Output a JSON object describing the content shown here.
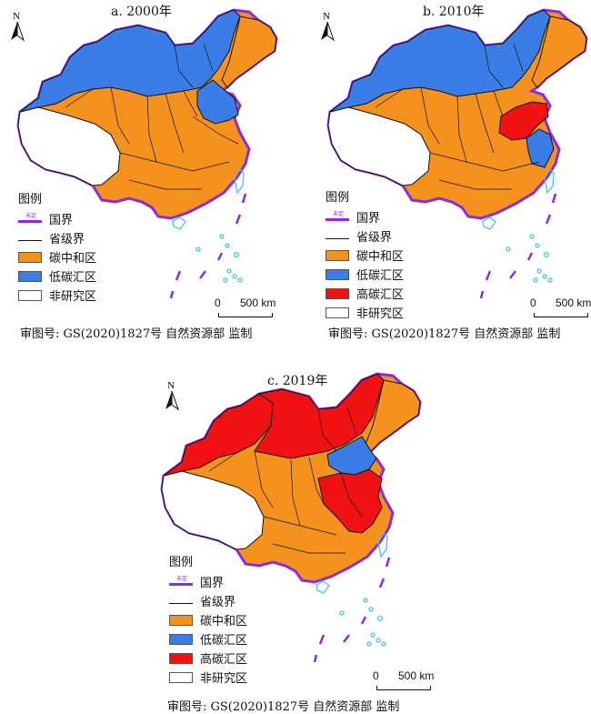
{
  "colors": {
    "carbon_neutral": "#f5921e",
    "low_carbon_sink": "#3a7de6",
    "high_carbon_sink": "#f01212",
    "non_study": "#ffffff",
    "national_border": "#8a2be2",
    "sea_islands": "#45c4de"
  },
  "north_label": "N",
  "legend": {
    "title": "图例",
    "border_tag": "未定",
    "national_border": "国界",
    "provincial_border": "省级界",
    "carbon_neutral": "碳中和区",
    "low_carbon": "低碳汇区",
    "high_carbon": "高碳汇区",
    "non_study": "非研究区"
  },
  "scale": {
    "zero": "0",
    "distance": "500 km"
  },
  "panels": [
    {
      "id": "a",
      "title": "a. 2000年",
      "caption": "审图号: GS(2020)1827号 自然资源部 监制",
      "categories": [
        "carbon_neutral",
        "low_carbon",
        "non_study"
      ]
    },
    {
      "id": "b",
      "title": "b. 2010年",
      "caption": "审图号: GS(2020)1827号 自然资源部 监制",
      "categories": [
        "carbon_neutral",
        "low_carbon",
        "high_carbon",
        "non_study"
      ]
    },
    {
      "id": "c",
      "title": "c. 2019年",
      "caption": "审图号: GS(2020)1827号 自然资源部 监制",
      "categories": [
        "carbon_neutral",
        "low_carbon",
        "high_carbon",
        "non_study"
      ]
    }
  ]
}
